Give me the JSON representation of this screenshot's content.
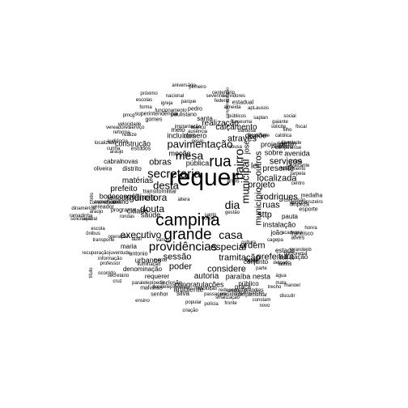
{
  "words": [
    {
      "text": "requer"
    },
    {
      "text": "campina"
    },
    {
      "text": "grande"
    },
    {
      "text": "providências"
    },
    {
      "text": "secretaria"
    },
    {
      "text": "rua"
    },
    {
      "text": "mesa"
    },
    {
      "text": "bairro"
    },
    {
      "text": "municipal"
    },
    {
      "text": "pavimentação"
    },
    {
      "text": "casa"
    },
    {
      "text": "dia"
    },
    {
      "text": "douta"
    },
    {
      "text": "desta"
    },
    {
      "text": "urgência"
    },
    {
      "text": "diretora"
    },
    {
      "text": "executivo"
    },
    {
      "text": "sessão"
    },
    {
      "text": "especial"
    },
    {
      "text": "tramitação"
    },
    {
      "text": "município"
    },
    {
      "text": "outros"
    },
    {
      "text": "serviços"
    },
    {
      "text": "presente"
    },
    {
      "text": "projeto"
    },
    {
      "text": "rodrigues"
    },
    {
      "text": "obras"
    },
    {
      "text": "poder"
    },
    {
      "text": "sttp"
    },
    {
      "text": "ruas"
    },
    {
      "text": "lei"
    },
    {
      "text": "autoria"
    },
    {
      "text": "considere"
    },
    {
      "text": "prefeitura"
    },
    {
      "text": "ordem"
    },
    {
      "text": "localizada"
    },
    {
      "text": "através"
    },
    {
      "text": "prefeito"
    },
    {
      "text": "realização"
    },
    {
      "text": "calçamento"
    },
    {
      "text": "incluídos"
    },
    {
      "text": "romero"
    },
    {
      "text": "moção"
    },
    {
      "text": "matérias"
    },
    {
      "text": "projetos"
    },
    {
      "text": "sobre"
    },
    {
      "text": "avenida"
    },
    {
      "text": "josé"
    },
    {
      "text": "cidade"
    },
    {
      "text": "saúde"
    },
    {
      "text": "denominação"
    },
    {
      "text": "congratulações"
    },
    {
      "text": "paraíba"
    },
    {
      "text": "nesta"
    },
    {
      "text": "urbanos"
    },
    {
      "text": "requerer"
    },
    {
      "text": "ambiente"
    },
    {
      "text": "pública"
    },
    {
      "text": "construção"
    },
    {
      "text": "bodocongó"
    },
    {
      "text": "instalação"
    },
    {
      "text": "joão"
    },
    {
      "text": "jardim"
    },
    {
      "text": "pauta"
    },
    {
      "text": "dispõe"
    },
    {
      "text": "estado"
    },
    {
      "text": "educação"
    },
    {
      "text": "conjunto"
    },
    {
      "text": "praça"
    },
    {
      "text": "público"
    },
    {
      "text": "inclusão"
    },
    {
      "text": "silva"
    },
    {
      "text": "votos"
    },
    {
      "text": "anos"
    },
    {
      "text": "santa"
    },
    {
      "text": "meio"
    },
    {
      "text": "novas"
    },
    {
      "text": "distrito"
    },
    {
      "text": "oliveira"
    },
    {
      "text": "cabral"
    },
    {
      "text": "junto"
    },
    {
      "text": "exmo"
    },
    {
      "text": "programa"
    },
    {
      "text": "vereador"
    },
    {
      "text": "maria"
    },
    {
      "text": "antonio"
    },
    {
      "text": "limpeza"
    },
    {
      "text": "esporte"
    },
    {
      "text": "alves"
    },
    {
      "text": "francisco"
    },
    {
      "text": "medalha"
    },
    {
      "text": "transito"
    },
    {
      "text": "militar"
    },
    {
      "text": "estudos"
    },
    {
      "text": "vereadores"
    },
    {
      "text": "serviço"
    },
    {
      "text": "iluminação"
    },
    {
      "text": "federal"
    },
    {
      "text": "servidores"
    },
    {
      "text": "centenário"
    },
    {
      "text": "pinheiro"
    },
    {
      "text": "aniversário"
    },
    {
      "text": "próximo"
    },
    {
      "text": "nacional"
    },
    {
      "text": "escolas"
    },
    {
      "text": "igreja"
    },
    {
      "text": "parque"
    },
    {
      "text": "estadual"
    },
    {
      "text": "severino"
    },
    {
      "text": "complementação"
    },
    {
      "text": "forma"
    },
    {
      "text": "funcionamento"
    },
    {
      "text": "pedro"
    },
    {
      "text": "almeida"
    },
    {
      "text": "apLausos"
    },
    {
      "text": "públicos"
    },
    {
      "text": "social"
    },
    {
      "text": "pmcg"
    },
    {
      "text": "superintendência"
    },
    {
      "text": "paulistano"
    },
    {
      "text": "gomes"
    },
    {
      "text": "seseuma"
    },
    {
      "text": "gaiante"
    },
    {
      "text": "solicite"
    },
    {
      "text": "barbosa"
    },
    {
      "text": "velocidade"
    },
    {
      "text": "implantação"
    },
    {
      "text": "branco"
    },
    {
      "text": "filho"
    },
    {
      "text": "católica"
    },
    {
      "text": "liberdade"
    },
    {
      "text": "campinense"
    },
    {
      "text": "audiência"
    },
    {
      "text": "localizado"
    },
    {
      "text": "cunha"
    },
    {
      "text": "araujo"
    },
    {
      "text": "realize"
    },
    {
      "text": "reforma"
    },
    {
      "text": "anexa"
    },
    {
      "text": "cavalcante"
    },
    {
      "text": "falecimento"
    },
    {
      "text": "farpela"
    },
    {
      "text": "centro"
    },
    {
      "text": "apoiuso"
    },
    {
      "text": "cruzeiro"
    },
    {
      "text": "honra"
    },
    {
      "text": "grandepb"
    },
    {
      "text": "borborema"
    },
    {
      "text": "instituí"
    },
    {
      "text": "cagepa"
    },
    {
      "text": "academia"
    },
    {
      "text": "água"
    },
    {
      "text": "mata"
    },
    {
      "text": "manoel"
    },
    {
      "text": "delgado"
    },
    {
      "text": "discutir"
    },
    {
      "text": "parte"
    },
    {
      "text": "trecho"
    },
    {
      "text": "complementar"
    },
    {
      "text": "constam"
    },
    {
      "text": "novo"
    },
    {
      "text": "secopbprendres"
    },
    {
      "text": "transportes"
    },
    {
      "text": "fronte"
    },
    {
      "text": "polícia"
    },
    {
      "text": "criação"
    },
    {
      "text": "popular"
    },
    {
      "text": "passagem"
    },
    {
      "text": "sinalização"
    },
    {
      "text": "presidente"
    },
    {
      "text": "rede"
    },
    {
      "text": "resolução"
    },
    {
      "text": "senhor"
    },
    {
      "text": "malvinas"
    },
    {
      "text": "ensino"
    },
    {
      "text": "paralelepípedos"
    },
    {
      "text": "paralelepípedo"
    },
    {
      "text": "ocorrido"
    },
    {
      "text": "cruz"
    },
    {
      "text": "secretário"
    },
    {
      "text": "professor"
    },
    {
      "text": "informação"
    },
    {
      "text": "recuperação"
    },
    {
      "text": "juventude"
    },
    {
      "text": "operação"
    },
    {
      "text": "transporte"
    },
    {
      "text": "central"
    },
    {
      "text": "ônibus"
    },
    {
      "text": "escola"
    },
    {
      "text": "solicitação"
    },
    {
      "text": "ramadinha"
    },
    {
      "text": "dinamérica"
    },
    {
      "text": "araújo"
    },
    {
      "text": "comunidade"
    },
    {
      "text": "comemorado"
    },
    {
      "text": "rondas"
    },
    {
      "text": "mérito"
    },
    {
      "text": "lazer"
    },
    {
      "text": "título"
    },
    {
      "text": "três"
    },
    {
      "text": "vários"
    },
    {
      "text": "altera"
    },
    {
      "text": "frente"
    },
    {
      "text": "cultura"
    },
    {
      "text": "artigo"
    },
    {
      "text": "gestão"
    },
    {
      "text": "fiscal"
    },
    {
      "text": "conclusão"
    },
    {
      "text": "qualidade"
    },
    {
      "text": "cavalcanti"
    },
    {
      "text": "sousa"
    },
    {
      "text": "costa"
    },
    {
      "text": "ausência"
    },
    {
      "text": "saplan"
    },
    {
      "text": "pesar"
    },
    {
      "text": "santo"
    },
    {
      "text": "lima"
    },
    {
      "text": "dia-a-dia"
    },
    {
      "text": "rosa"
    },
    {
      "text": "santos"
    }
  ]
}
